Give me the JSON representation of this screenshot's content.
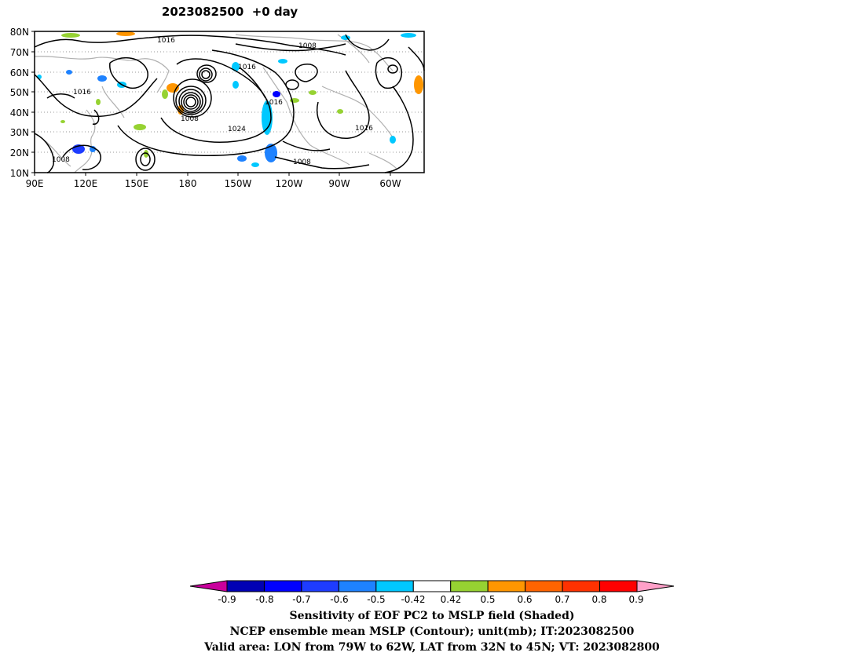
{
  "title": "2023082500  +0 day",
  "map": {
    "lat_labels": [
      "80N",
      "70N",
      "60N",
      "50N",
      "40N",
      "30N",
      "20N",
      "10N"
    ],
    "lon_labels": [
      "90E",
      "120E",
      "150E",
      "180",
      "150W",
      "120W",
      "90W",
      "60W"
    ],
    "contour_labels": [
      "1016",
      "1008",
      "1016",
      "1016",
      "1008",
      "1016",
      "1024",
      "1016",
      "1008",
      "1008"
    ],
    "contour_color": "#000000",
    "coastline_color": "#b0b0b0"
  },
  "colorbar": {
    "tick_labels": [
      "-0.9",
      "-0.8",
      "-0.7",
      "-0.6",
      "-0.5",
      "-0.42",
      "0.42",
      "0.5",
      "0.6",
      "0.7",
      "0.8",
      "0.9"
    ],
    "colors": [
      "#c8009c",
      "#0000b4",
      "#0000ff",
      "#1e3cff",
      "#1e82ff",
      "#00c8ff",
      "#ffffff",
      "#96d232",
      "#ff9600",
      "#ff6400",
      "#ff3200",
      "#ff0000",
      "#ffa0c8"
    ]
  },
  "captions": [
    "Sensitivity of EOF PC2 to MSLP field (Shaded)",
    "NCEP ensemble mean MSLP (Contour); unit(mb); IT:2023082500",
    "Valid area: LON from 79W to 62W, LAT from 32N to 45N; VT: 2023082800"
  ]
}
